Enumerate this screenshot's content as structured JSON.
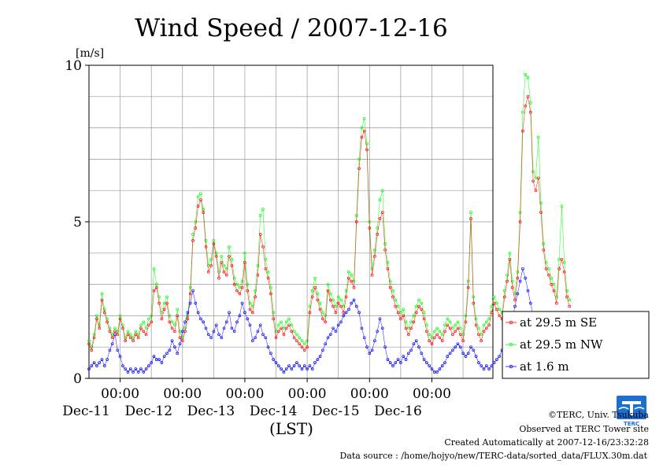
{
  "chart_data": {
    "type": "line",
    "title": "Wind Speed / 2007-12-16",
    "ylabel": "[m/s]",
    "xlabel": "(LST)",
    "ylim": [
      0,
      10
    ],
    "y_ticks": [
      "0",
      "5",
      "10"
    ],
    "xlim": [
      "2007-12-10T12:00",
      "2007-12-16T23:30"
    ],
    "x_ticks": [
      {
        "time": "2007-12-11T00:00",
        "label": "00:00",
        "day": "Dec-11"
      },
      {
        "time": "2007-12-12T00:00",
        "label": "00:00",
        "day": "Dec-12"
      },
      {
        "time": "2007-12-13T00:00",
        "label": "00:00",
        "day": "Dec-13"
      },
      {
        "time": "2007-12-14T00:00",
        "label": "00:00",
        "day": "Dec-14"
      },
      {
        "time": "2007-12-15T00:00",
        "label": "00:00",
        "day": "Dec-15"
      },
      {
        "time": "2007-12-16T00:00",
        "label": "00:00",
        "day": "Dec-16"
      }
    ],
    "grid": true,
    "legend_position": "bottom-right",
    "x_time_step_hours": 1,
    "series": [
      {
        "name": "at 29.5 m SE",
        "color": "#ff0000",
        "values": [
          1.1,
          0.9,
          1.3,
          1.9,
          1.6,
          2.5,
          2.1,
          1.8,
          1.5,
          1.3,
          1.5,
          1.4,
          1.9,
          1.6,
          1.2,
          1.4,
          1.3,
          1.2,
          1.4,
          1.3,
          1.6,
          1.5,
          1.4,
          1.7,
          1.8,
          2.8,
          2.9,
          2.4,
          1.9,
          2.2,
          2.4,
          1.8,
          1.6,
          1.5,
          2.0,
          1.3,
          1.2,
          1.5,
          1.9,
          2.7,
          4.4,
          4.8,
          5.5,
          5.7,
          5.3,
          4.2,
          3.4,
          3.6,
          4.3,
          3.9,
          3.2,
          3.7,
          3.4,
          3.3,
          3.9,
          3.6,
          3.0,
          2.8,
          2.7,
          2.9,
          3.7,
          2.8,
          2.2,
          2.1,
          2.6,
          3.3,
          4.6,
          4.2,
          3.5,
          3.2,
          2.7,
          1.9,
          1.3,
          1.5,
          1.6,
          1.4,
          1.6,
          1.7,
          1.5,
          1.3,
          1.2,
          1.1,
          1.0,
          0.9,
          1.0,
          2.1,
          2.6,
          2.9,
          2.5,
          2.2,
          1.9,
          1.8,
          2.8,
          2.5,
          2.3,
          2.1,
          2.4,
          2.3,
          2.1,
          2.6,
          3.2,
          3.1,
          2.9,
          5.0,
          6.7,
          7.7,
          7.9,
          7.3,
          4.8,
          3.3,
          3.9,
          4.6,
          5.1,
          5.3,
          4.1,
          3.5,
          2.9,
          2.6,
          2.3,
          2.1,
          1.9,
          2.0,
          1.6,
          1.4,
          1.6,
          1.8,
          2.1,
          2.3,
          2.2,
          1.9,
          1.5,
          1.2,
          1.1,
          1.3,
          1.4,
          1.3,
          1.2,
          1.5,
          1.7,
          1.6,
          1.4,
          1.5,
          1.6,
          1.4,
          1.2,
          1.8,
          2.9,
          5.1,
          2.4,
          1.7,
          1.4,
          1.2,
          1.5,
          1.6,
          1.7,
          2.1,
          2.4,
          2.2,
          2.0,
          1.9,
          2.6,
          3.1,
          3.8,
          2.9,
          2.5,
          3.2,
          5.0,
          7.9,
          8.7,
          9.0,
          8.5,
          6.3,
          6.0,
          6.4,
          5.3,
          4.1,
          3.5,
          3.3,
          3.0,
          2.8,
          2.4,
          3.5,
          3.8,
          3.4,
          2.6,
          2.3
        ]
      },
      {
        "name": "at 29.5 m NW",
        "color": "#00ff00",
        "values": [
          1.2,
          1.0,
          1.4,
          2.0,
          1.7,
          2.7,
          2.2,
          1.9,
          1.6,
          1.4,
          1.6,
          1.5,
          2.0,
          1.7,
          1.3,
          1.5,
          1.4,
          1.3,
          1.5,
          1.4,
          1.7,
          1.8,
          1.6,
          1.9,
          2.0,
          3.5,
          3.0,
          2.6,
          2.1,
          2.4,
          2.6,
          2.0,
          1.8,
          1.7,
          2.2,
          1.5,
          1.3,
          1.6,
          2.0,
          2.9,
          4.6,
          5.0,
          5.8,
          5.9,
          5.4,
          4.4,
          3.6,
          3.8,
          4.4,
          4.0,
          3.4,
          3.9,
          3.6,
          3.5,
          4.2,
          3.8,
          3.2,
          3.0,
          2.9,
          3.1,
          4.0,
          3.0,
          2.4,
          2.3,
          2.8,
          3.6,
          5.2,
          5.4,
          3.8,
          3.4,
          2.9,
          2.1,
          1.5,
          1.7,
          1.8,
          1.6,
          1.8,
          1.9,
          1.7,
          1.5,
          1.4,
          1.3,
          1.2,
          1.1,
          1.2,
          2.3,
          2.8,
          3.2,
          2.7,
          2.4,
          2.1,
          2.0,
          3.0,
          2.7,
          2.5,
          2.3,
          2.6,
          2.5,
          2.3,
          2.8,
          3.4,
          3.3,
          3.1,
          5.2,
          7.0,
          8.0,
          8.3,
          7.5,
          5.0,
          3.5,
          4.1,
          4.8,
          5.7,
          6.0,
          4.3,
          3.7,
          3.1,
          2.8,
          2.5,
          2.3,
          2.1,
          2.2,
          1.8,
          1.6,
          1.8,
          2.0,
          2.3,
          2.5,
          2.4,
          2.1,
          1.7,
          1.4,
          1.3,
          1.5,
          1.6,
          1.5,
          1.4,
          1.7,
          1.9,
          1.8,
          1.6,
          1.7,
          1.8,
          1.6,
          1.4,
          2.0,
          3.1,
          5.3,
          2.6,
          1.9,
          1.6,
          1.4,
          1.7,
          1.8,
          1.9,
          2.3,
          2.6,
          2.4,
          2.2,
          2.1,
          2.8,
          3.3,
          4.0,
          3.1,
          2.7,
          3.4,
          5.3,
          8.5,
          9.7,
          9.6,
          8.8,
          6.6,
          6.4,
          7.7,
          5.6,
          4.3,
          3.7,
          3.5,
          3.2,
          3.0,
          2.6,
          3.8,
          5.5,
          3.7,
          2.8,
          2.5
        ]
      },
      {
        "name": "at 1.6 m",
        "color": "#0000ff",
        "values": [
          0.3,
          0.4,
          0.5,
          0.4,
          0.5,
          0.6,
          0.4,
          0.6,
          0.9,
          1.1,
          1.4,
          0.9,
          0.7,
          0.4,
          0.3,
          0.2,
          0.3,
          0.2,
          0.3,
          0.2,
          0.3,
          0.2,
          0.3,
          0.4,
          0.5,
          0.7,
          0.6,
          0.6,
          0.5,
          0.7,
          0.8,
          0.9,
          1.2,
          1.0,
          0.8,
          1.1,
          1.5,
          1.8,
          2.1,
          2.4,
          2.8,
          2.4,
          2.1,
          1.9,
          1.8,
          1.6,
          1.4,
          1.3,
          1.5,
          1.7,
          1.4,
          1.3,
          1.6,
          1.8,
          2.1,
          1.6,
          1.5,
          1.8,
          2.0,
          2.4,
          2.1,
          1.9,
          1.7,
          1.2,
          1.3,
          1.5,
          1.7,
          1.4,
          1.3,
          1.0,
          0.8,
          0.6,
          0.5,
          0.4,
          0.3,
          0.2,
          0.3,
          0.4,
          0.3,
          0.4,
          0.5,
          0.4,
          0.3,
          0.4,
          0.3,
          0.4,
          0.3,
          0.5,
          0.6,
          0.7,
          0.9,
          1.1,
          1.3,
          1.4,
          1.6,
          1.5,
          1.7,
          1.8,
          2.0,
          2.1,
          2.2,
          2.4,
          2.5,
          2.3,
          2.1,
          1.6,
          1.3,
          1.0,
          0.8,
          0.9,
          1.2,
          1.5,
          1.9,
          1.6,
          1.0,
          0.6,
          0.5,
          0.4,
          0.5,
          0.6,
          0.5,
          0.7,
          0.6,
          0.8,
          0.9,
          1.1,
          1.2,
          1.0,
          0.8,
          0.6,
          0.5,
          0.4,
          0.3,
          0.2,
          0.2,
          0.3,
          0.4,
          0.5,
          0.7,
          0.8,
          0.9,
          1.0,
          1.1,
          1.0,
          0.8,
          0.7,
          0.8,
          1.0,
          0.9,
          0.7,
          0.5,
          0.4,
          0.3,
          0.4,
          0.3,
          0.4,
          0.5,
          0.6,
          0.7,
          0.9,
          1.1,
          1.3,
          1.6,
          1.9,
          2.3,
          2.7,
          3.1,
          3.5,
          3.2,
          2.8,
          2.4,
          2.0,
          1.8,
          1.6,
          1.7,
          1.9,
          1.4,
          1.2,
          1.0,
          0.9,
          0.8,
          0.7,
          0.9,
          1.1,
          1.0,
          0.7
        ]
      }
    ]
  },
  "footer": {
    "copyright": "©TERC, Univ. Tsukuba",
    "observed": "Observed at TERC Tower site",
    "created": "Created Automatically at 2007-12-16/23:32:28",
    "source": "Data source : /home/hojyo/new/TERC-data/sorted_data/FLUX.30m.dat"
  },
  "logo": {
    "text": "TERC",
    "color": "#1a6fd1"
  }
}
